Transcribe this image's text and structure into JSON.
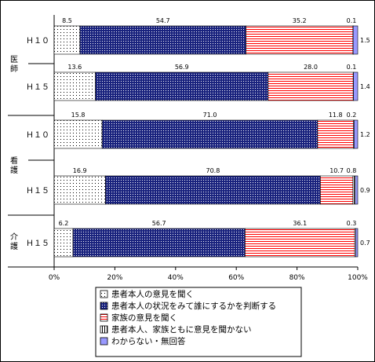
{
  "chart_data": {
    "type": "bar",
    "orientation": "horizontal",
    "stacked": "percent",
    "groups": [
      {
        "label": "医師",
        "rows": [
          0,
          1
        ]
      },
      {
        "label": "看護",
        "rows": [
          2,
          3
        ]
      },
      {
        "label": "介護",
        "rows": [
          4
        ]
      }
    ],
    "categories": [
      "Ｈ１０",
      "Ｈ１５",
      "Ｈ１０",
      "Ｈ１５",
      "Ｈ１５"
    ],
    "series": [
      {
        "name": "患者本人の意見を聞く",
        "values": [
          8.5,
          13.6,
          15.8,
          16.9,
          6.2
        ],
        "labels": [
          "8.5",
          "13.6",
          "15.8",
          "16.9",
          "6.2"
        ]
      },
      {
        "name": "患者本人の状況をみて誰にするかを判断する",
        "values": [
          54.7,
          56.9,
          71.0,
          70.8,
          56.7
        ],
        "labels": [
          "54.7",
          "56.9",
          "71.0",
          "70.8",
          "56.7"
        ]
      },
      {
        "name": "家族の意見を聞く",
        "values": [
          35.2,
          28.0,
          11.8,
          10.7,
          36.1
        ],
        "labels": [
          "35.2",
          "28.0",
          "11.8",
          "10.7",
          "36.1"
        ]
      },
      {
        "name": "患者本人、家族ともに意見を聞かない",
        "values": [
          0.1,
          0.1,
          0.2,
          0.8,
          0.3
        ],
        "labels": [
          "0.1",
          "0.1",
          "0.2",
          "0.8",
          "0.3"
        ]
      },
      {
        "name": "わからない・無回答",
        "values": [
          1.5,
          1.4,
          1.2,
          0.9,
          0.7
        ],
        "labels": [
          "1.5",
          "1.4",
          "1.2",
          "0.9",
          "0.7"
        ]
      }
    ],
    "x_ticks": [
      "0%",
      "20%",
      "40%",
      "60%",
      "80%",
      "100%"
    ],
    "xlim": [
      0,
      100
    ],
    "grid": false,
    "legend_position": "bottom",
    "colors": {
      "s1_fill": "#ffffff",
      "s1_dot": "#000000",
      "s2_fill": "#1a237e",
      "s2_dot": "#ffffff",
      "s3_fill": "#ffffff",
      "s3_line": "#ff0000",
      "s4_fill": "#ffffff",
      "s4_line": "#000000",
      "s5_fill": "#9999ff"
    }
  }
}
